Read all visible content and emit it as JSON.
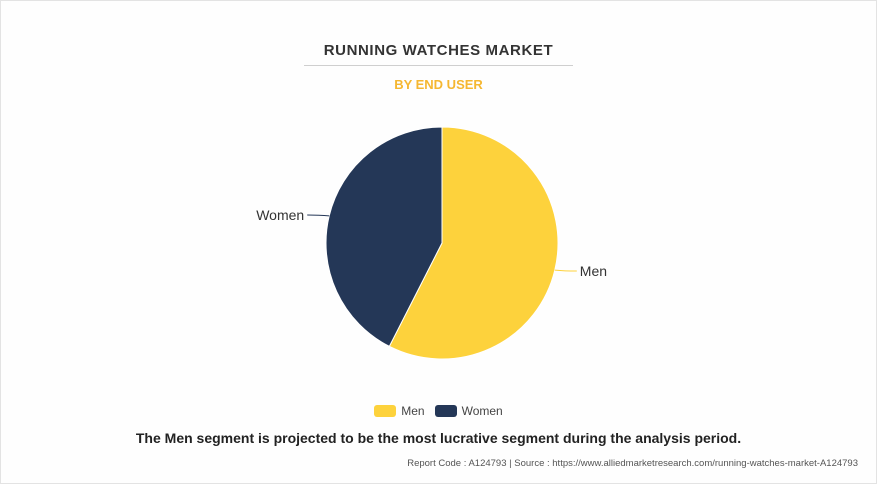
{
  "title": "RUNNING WATCHES MARKET",
  "subtitle": "BY END USER",
  "chart_data": {
    "type": "pie",
    "categories": [
      "Men",
      "Women"
    ],
    "values": [
      57.5,
      42.5
    ],
    "colors": [
      "#fdd23c",
      "#243757"
    ],
    "legend_position": "bottom-center"
  },
  "caption": "The Men segment is projected to be the most lucrative segment during the analysis period.",
  "footer": {
    "report_code": "Report Code : A124793",
    "separator": "|",
    "source": "Source : https://www.alliedmarketresearch.com/running-watches-market-A124793"
  }
}
